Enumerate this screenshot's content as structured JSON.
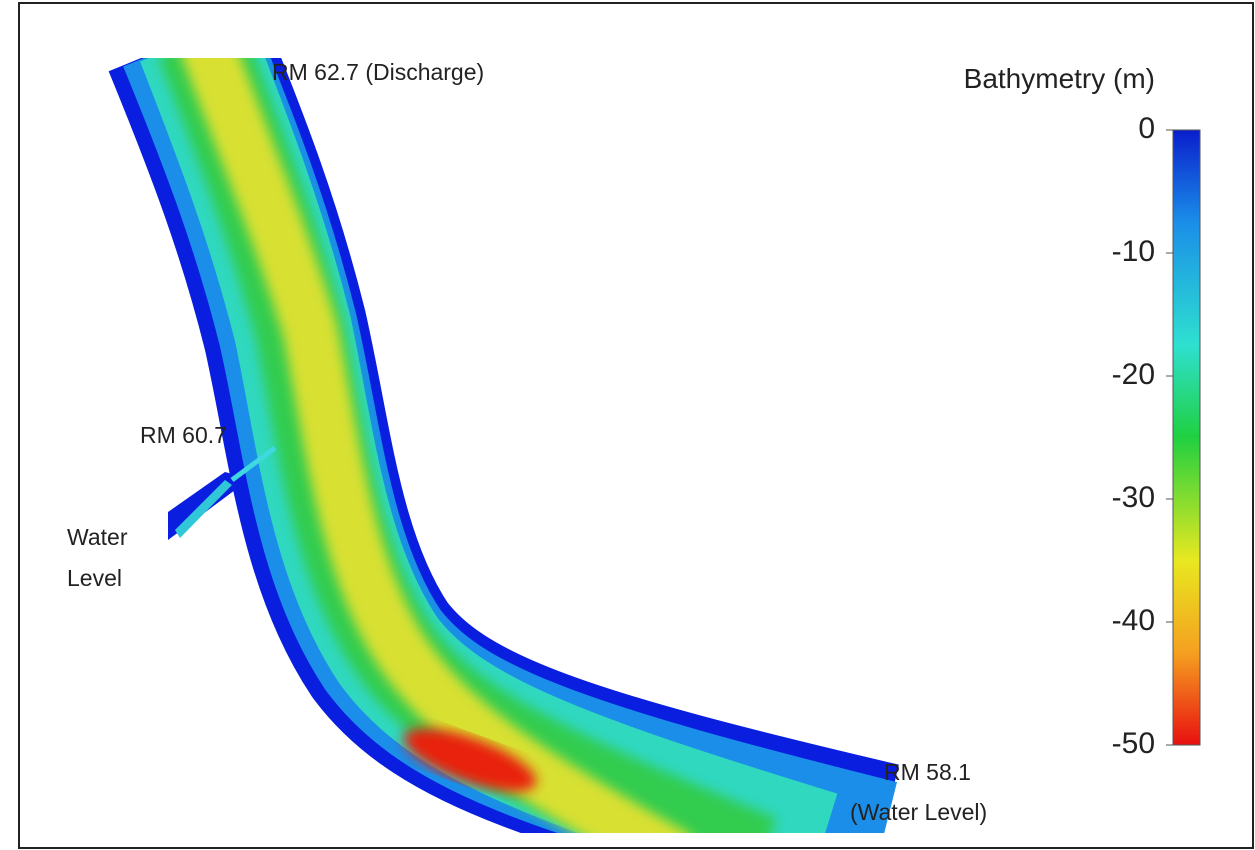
{
  "map": {
    "labels": {
      "upstream": "RM 62.7 (Discharge)",
      "middle": "RM 60.7",
      "middle_sub": [
        "Water",
        "Level"
      ],
      "downstream": [
        "RM 58.1",
        "(Water Level)"
      ]
    }
  },
  "colorbar": {
    "title": "Bathymetry (m)",
    "lim": [
      0,
      -50
    ],
    "ticks": [
      0,
      -10,
      -20,
      -30,
      -40,
      -50
    ]
  }
}
